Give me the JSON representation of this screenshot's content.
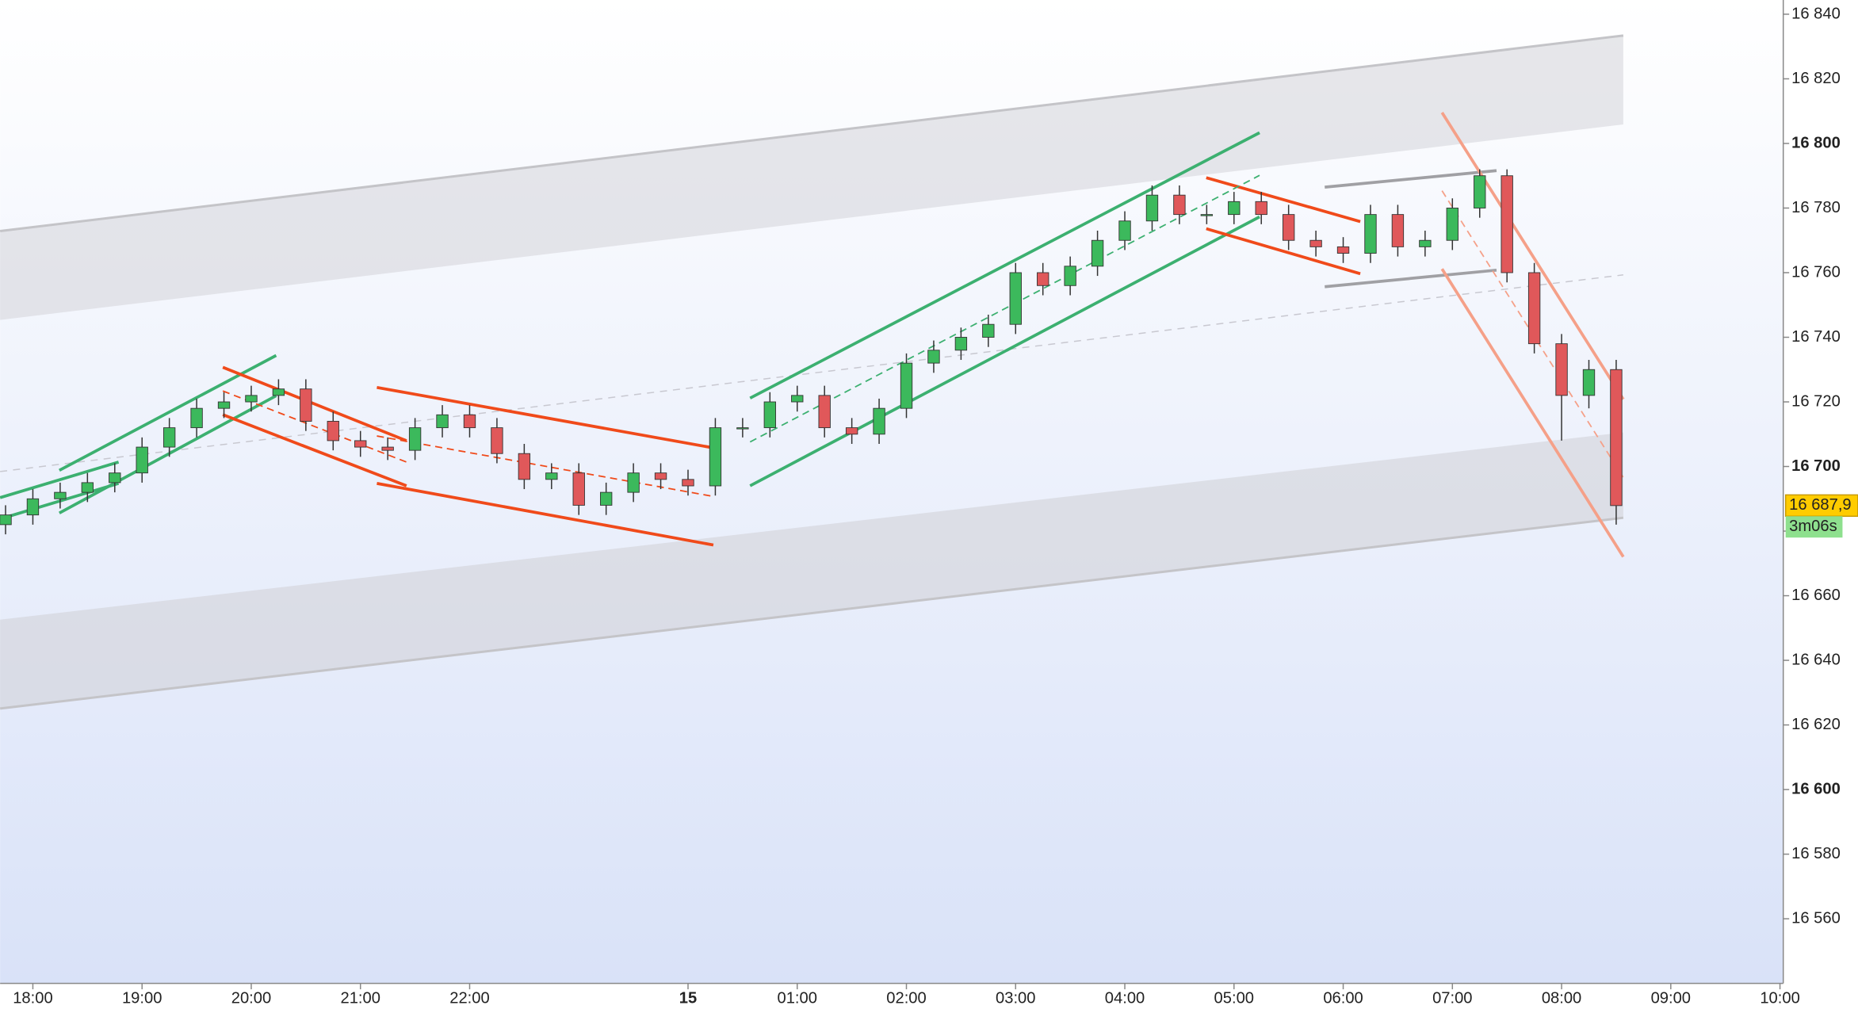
{
  "chart_data": {
    "type": "candlestick",
    "xlim": [
      17.7,
      34.03
    ],
    "ylim": [
      16540,
      16844.4
    ],
    "xticks": [
      {
        "value": 18,
        "label": "18:00"
      },
      {
        "value": 19,
        "label": "19:00"
      },
      {
        "value": 20,
        "label": "20:00"
      },
      {
        "value": 21,
        "label": "21:00"
      },
      {
        "value": 22,
        "label": "22:00"
      },
      {
        "value": 24,
        "label": "15"
      },
      {
        "value": 25,
        "label": "01:00"
      },
      {
        "value": 26,
        "label": "02:00"
      },
      {
        "value": 27,
        "label": "03:00"
      },
      {
        "value": 28,
        "label": "04:00"
      },
      {
        "value": 29,
        "label": "05:00"
      },
      {
        "value": 30,
        "label": "06:00"
      },
      {
        "value": 31,
        "label": "07:00"
      },
      {
        "value": 32,
        "label": "08:00"
      },
      {
        "value": 33,
        "label": "09:00"
      },
      {
        "value": 34,
        "label": "10:00"
      }
    ],
    "yticks": [
      {
        "value": 16560,
        "label": "16 560"
      },
      {
        "value": 16580,
        "label": "16 580"
      },
      {
        "value": 16600,
        "label": "16 600"
      },
      {
        "value": 16620,
        "label": "16 620"
      },
      {
        "value": 16640,
        "label": "16 640"
      },
      {
        "value": 16660,
        "label": "16 660"
      },
      {
        "value": 16680,
        "label": "16 680"
      },
      {
        "value": 16700,
        "label": "16 700"
      },
      {
        "value": 16720,
        "label": "16 720"
      },
      {
        "value": 16740,
        "label": "16 740"
      },
      {
        "value": 16760,
        "label": "16 760"
      },
      {
        "value": 16780,
        "label": "16 780"
      },
      {
        "value": 16800,
        "label": "16 800"
      },
      {
        "value": 16820,
        "label": "16 820"
      },
      {
        "value": 16840,
        "label": "16 840"
      }
    ],
    "up_color": "#3cb95c",
    "down_color": "#e0585a",
    "x": [
      17.75,
      18,
      18.25,
      18.5,
      18.75,
      19,
      19.25,
      19.5,
      19.75,
      20,
      20.25,
      20.5,
      20.75,
      21,
      21.25,
      21.5,
      21.75,
      22,
      22.25,
      22.5,
      22.75,
      23,
      23.25,
      23.5,
      23.75,
      24,
      24.25,
      24.5,
      24.75,
      25,
      25.25,
      25.5,
      25.75,
      26,
      26.25,
      26.5,
      26.75,
      27,
      27.25,
      27.5,
      27.75,
      28,
      28.25,
      28.5,
      28.75,
      29,
      29.25,
      29.5,
      29.75,
      30,
      30.25,
      30.5,
      30.75,
      31,
      31.25,
      31.5,
      31.75,
      32,
      32.25,
      32.5
    ],
    "open": [
      16682,
      16685,
      16690,
      16692,
      16695,
      16698,
      16706,
      16712,
      16718,
      16720,
      16722,
      16724,
      16714,
      16708,
      16706,
      16705,
      16712,
      16716,
      16712,
      16704,
      16696,
      16698,
      16688,
      16692,
      16698,
      16696,
      16694,
      16712,
      16712,
      16720,
      16722,
      16712,
      16710,
      16718,
      16732,
      16736,
      16740,
      16744,
      16760,
      16756,
      16762,
      16770,
      16776,
      16784,
      16778,
      16778,
      16782,
      16778,
      16770,
      16768,
      16766,
      16778,
      16768,
      16770,
      16780,
      16790,
      16760,
      16738,
      16722,
      16730
    ],
    "high": [
      16688,
      16693,
      16695,
      16698,
      16701,
      16709,
      16715,
      16721,
      16723,
      16725,
      16727,
      16727,
      16717,
      16711,
      16709,
      16715,
      16719,
      16719,
      16715,
      16707,
      16701,
      16701,
      16695,
      16701,
      16701,
      16699,
      16715,
      16715,
      16723,
      16725,
      16725,
      16715,
      16721,
      16735,
      16739,
      16743,
      16747,
      16763,
      16763,
      16765,
      16773,
      16779,
      16787,
      16787,
      16781,
      16785,
      16785,
      16781,
      16773,
      16771,
      16781,
      16781,
      16773,
      16783,
      16792,
      16792,
      16763,
      16741,
      16733,
      16733
    ],
    "low": [
      16679,
      16682,
      16687,
      16689,
      16692,
      16695,
      16703,
      16709,
      16715,
      16717,
      16719,
      16711,
      16705,
      16703,
      16702,
      16702,
      16709,
      16709,
      16701,
      16693,
      16693,
      16685,
      16685,
      16689,
      16693,
      16691,
      16691,
      16709,
      16709,
      16717,
      16709,
      16707,
      16707,
      16715,
      16729,
      16733,
      16737,
      16741,
      16753,
      16753,
      16759,
      16767,
      16773,
      16775,
      16775,
      16775,
      16775,
      16767,
      16765,
      16763,
      16763,
      16765,
      16765,
      16767,
      16777,
      16757,
      16735,
      16708,
      16718,
      16682
    ],
    "close": [
      16685,
      16690,
      16692,
      16695,
      16698,
      16706,
      16712,
      16718,
      16720,
      16722,
      16724,
      16714,
      16708,
      16706,
      16705,
      16712,
      16716,
      16712,
      16704,
      16696,
      16698,
      16688,
      16692,
      16698,
      16696,
      16694,
      16712,
      16712,
      16720,
      16722,
      16712,
      16710,
      16718,
      16732,
      16736,
      16740,
      16744,
      16760,
      16756,
      16762,
      16770,
      16776,
      16784,
      16778,
      16778,
      16782,
      16778,
      16770,
      16768,
      16766,
      16778,
      16768,
      16770,
      16780,
      16790,
      16760,
      16738,
      16722,
      16730,
      16687.9
    ],
    "last_price": {
      "value": 16687.9,
      "label": "16 687,9"
    },
    "countdown": "3m06s"
  }
}
